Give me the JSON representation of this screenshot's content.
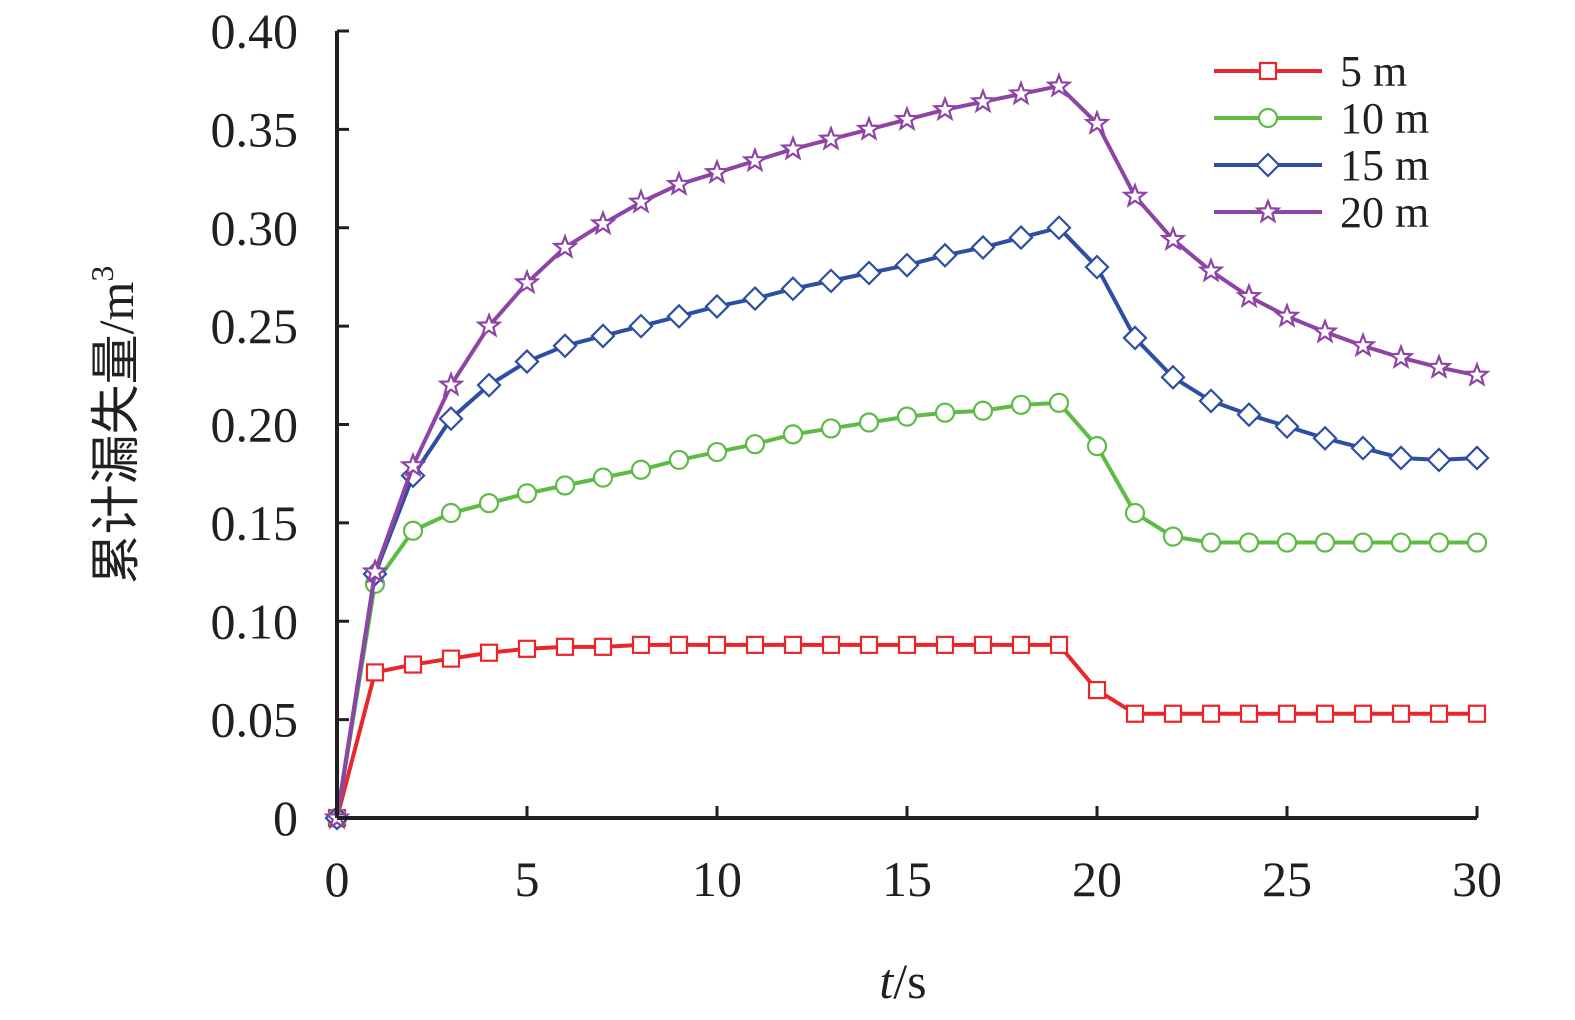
{
  "chart_data": {
    "type": "line",
    "xlabel_italic": "t",
    "xlabel_unit": "/s",
    "ylabel_text": "累计漏失量/m",
    "ylabel_sup": "3",
    "xlim": [
      0,
      30
    ],
    "ylim": [
      0,
      0.4
    ],
    "x_ticks": [
      0,
      5,
      10,
      15,
      20,
      25,
      30
    ],
    "x_tick_labels": [
      "0",
      "5",
      "10",
      "15",
      "20",
      "25",
      "30"
    ],
    "y_ticks": [
      0,
      0.05,
      0.1,
      0.15,
      0.2,
      0.25,
      0.3,
      0.35,
      0.4
    ],
    "y_tick_labels": [
      "0",
      "0.05",
      "0.10",
      "0.15",
      "0.20",
      "0.25",
      "0.30",
      "0.35",
      "0.40"
    ],
    "grid": false,
    "legend_position": "top-right",
    "series": [
      {
        "name": "5 m",
        "color": "#e8262b",
        "marker": "square",
        "x": [
          0,
          1,
          2,
          3,
          4,
          5,
          6,
          7,
          8,
          9,
          10,
          11,
          12,
          13,
          14,
          15,
          16,
          17,
          18,
          19,
          20,
          21,
          22,
          23,
          24,
          25,
          26,
          27,
          28,
          29,
          30
        ],
        "values": [
          0,
          0.074,
          0.078,
          0.081,
          0.084,
          0.086,
          0.087,
          0.087,
          0.088,
          0.088,
          0.088,
          0.088,
          0.088,
          0.088,
          0.088,
          0.088,
          0.088,
          0.088,
          0.088,
          0.088,
          0.065,
          0.053,
          0.053,
          0.053,
          0.053,
          0.053,
          0.053,
          0.053,
          0.053,
          0.053,
          0.053
        ]
      },
      {
        "name": "10 m",
        "color": "#5dbb46",
        "marker": "circle",
        "x": [
          0,
          1,
          2,
          3,
          4,
          5,
          6,
          7,
          8,
          9,
          10,
          11,
          12,
          13,
          14,
          15,
          16,
          17,
          18,
          19,
          20,
          21,
          22,
          23,
          24,
          25,
          26,
          27,
          28,
          29,
          30
        ],
        "values": [
          0,
          0.119,
          0.146,
          0.155,
          0.16,
          0.165,
          0.169,
          0.173,
          0.177,
          0.182,
          0.186,
          0.19,
          0.195,
          0.198,
          0.201,
          0.204,
          0.206,
          0.207,
          0.21,
          0.211,
          0.189,
          0.155,
          0.143,
          0.14,
          0.14,
          0.14,
          0.14,
          0.14,
          0.14,
          0.14,
          0.14
        ]
      },
      {
        "name": "15 m",
        "color": "#2d4ea2",
        "marker": "diamond",
        "x": [
          0,
          1,
          2,
          3,
          4,
          5,
          6,
          7,
          8,
          9,
          10,
          11,
          12,
          13,
          14,
          15,
          16,
          17,
          18,
          19,
          20,
          21,
          22,
          23,
          24,
          25,
          26,
          27,
          28,
          29,
          30
        ],
        "values": [
          0,
          0.124,
          0.174,
          0.203,
          0.22,
          0.232,
          0.24,
          0.245,
          0.25,
          0.255,
          0.26,
          0.264,
          0.269,
          0.273,
          0.277,
          0.281,
          0.286,
          0.29,
          0.295,
          0.3,
          0.28,
          0.244,
          0.224,
          0.212,
          0.205,
          0.199,
          0.193,
          0.188,
          0.183,
          0.182,
          0.183
        ]
      },
      {
        "name": "20 m",
        "color": "#8e44a4",
        "marker": "star",
        "x": [
          0,
          1,
          2,
          3,
          4,
          5,
          6,
          7,
          8,
          9,
          10,
          11,
          12,
          13,
          14,
          15,
          16,
          17,
          18,
          19,
          20,
          21,
          22,
          23,
          24,
          25,
          26,
          27,
          28,
          29,
          30
        ],
        "values": [
          0,
          0.125,
          0.179,
          0.22,
          0.25,
          0.272,
          0.29,
          0.302,
          0.313,
          0.322,
          0.328,
          0.334,
          0.34,
          0.345,
          0.35,
          0.355,
          0.36,
          0.364,
          0.368,
          0.372,
          0.353,
          0.316,
          0.294,
          0.278,
          0.265,
          0.255,
          0.247,
          0.24,
          0.234,
          0.229,
          0.225
        ]
      }
    ]
  }
}
